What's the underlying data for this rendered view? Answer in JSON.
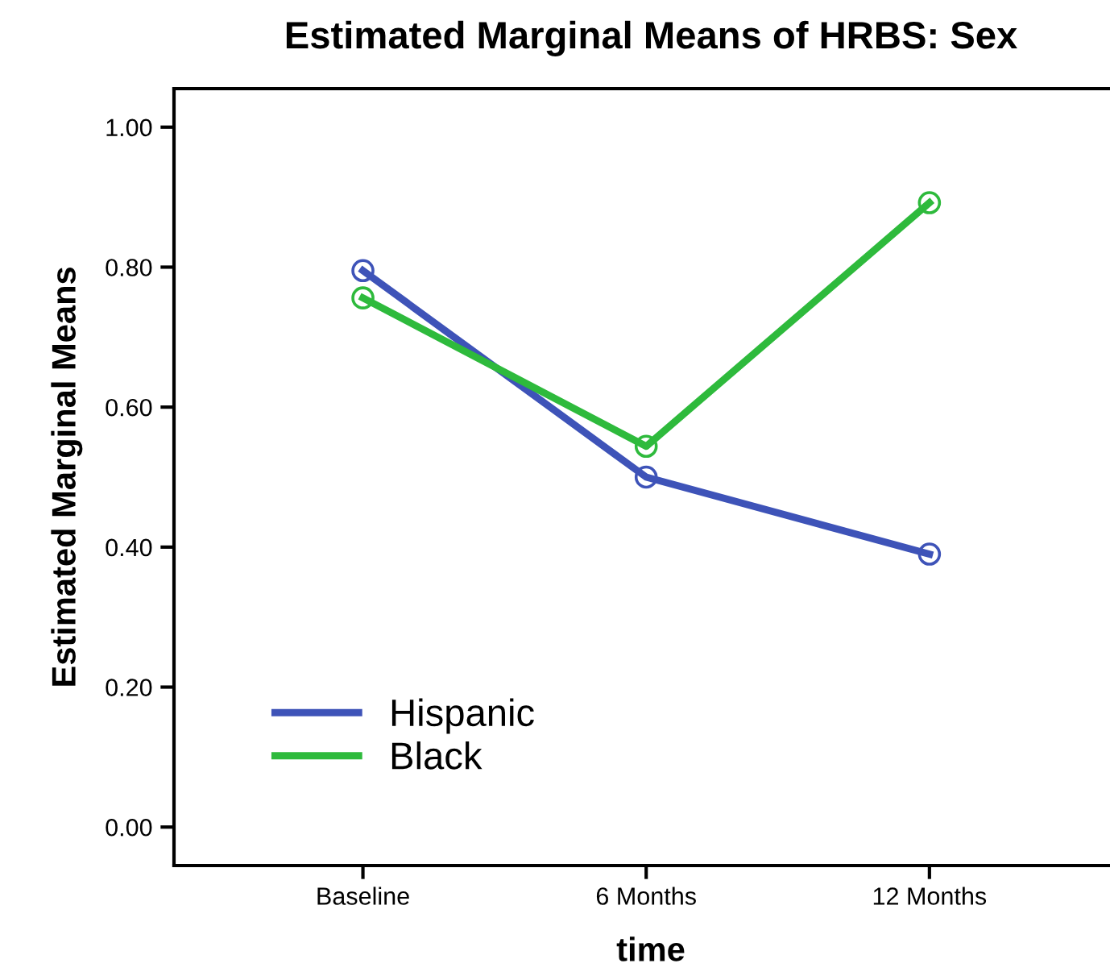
{
  "chart_data": {
    "type": "line",
    "title": "Estimated Marginal Means of HRBS: Sex",
    "xlabel": "time",
    "ylabel": "Estimated Marginal Means",
    "categories": [
      "Baseline",
      "6 Months",
      "12 Months"
    ],
    "series": [
      {
        "name": "Hispanic",
        "color": "#3e53b8",
        "values": [
          0.795,
          0.5,
          0.39
        ]
      },
      {
        "name": "Black",
        "color": "#2eba3c",
        "values": [
          0.756,
          0.544,
          0.892
        ]
      }
    ],
    "ylim": [
      -0.055,
      1.055
    ],
    "yticks": [
      {
        "value": 0,
        "label": "0.00"
      },
      {
        "value": 0.2,
        "label": "0.20"
      },
      {
        "value": 0.4,
        "label": "0.40"
      },
      {
        "value": 0.6,
        "label": "0.60"
      },
      {
        "value": 0.8,
        "label": "0.80"
      },
      {
        "value": 1.0,
        "label": "1.00"
      }
    ],
    "marker": "circle",
    "line_style": "solid",
    "legend": "bottom left",
    "grid": false
  }
}
